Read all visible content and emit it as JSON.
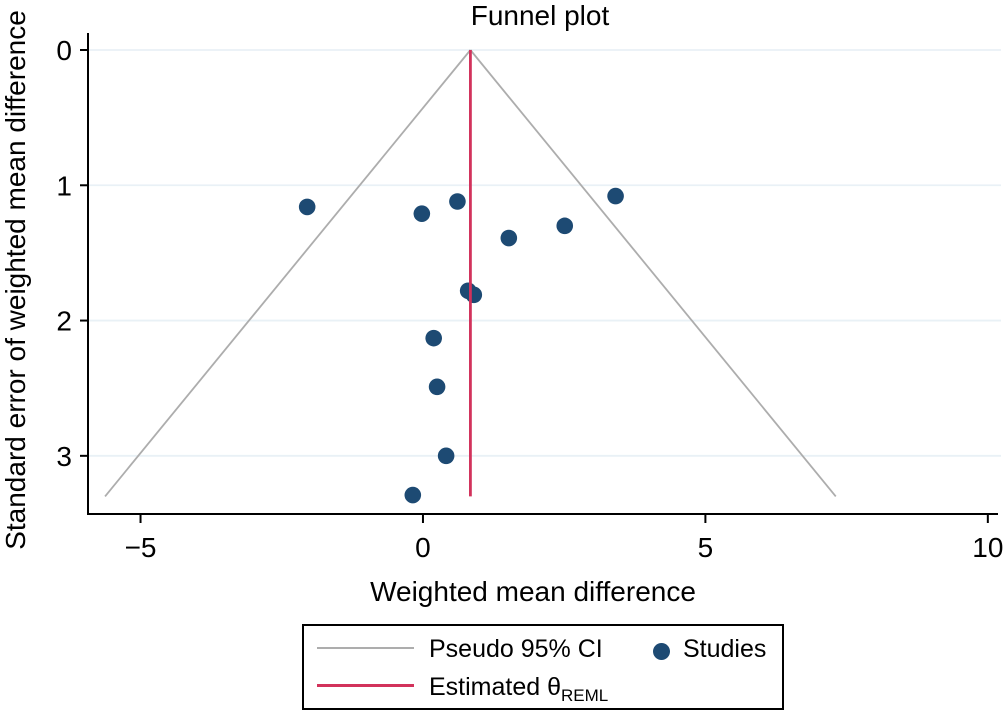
{
  "figure": {
    "title": "Funnel plot",
    "xlabel": "Weighted mean difference",
    "ylabel": "Standard error of weighted mean difference"
  },
  "legend": {
    "pseudo_ci_label": "Pseudo 95% CI",
    "estimated_label": "Estimated θ",
    "estimated_sub": "REML",
    "studies_label": "Studies"
  },
  "colors": {
    "study_dot": "#1d4a73",
    "estimate_line": "#d2325b",
    "ci_line": "#adadad",
    "gridline": "#e9f1f6",
    "axis": "#000000"
  },
  "chart_data": {
    "type": "scatter",
    "title": "Funnel plot",
    "xlabel": "Weighted mean difference",
    "ylabel": "Standard error of weighted mean difference",
    "x_axis": {
      "min": -5.93,
      "max": 10.18,
      "tick_values": [
        -5,
        0,
        5,
        10
      ],
      "tick_labels": [
        "−5",
        "0",
        "5",
        "10"
      ]
    },
    "y_axis": {
      "min": 0,
      "max": 3.43,
      "inverted": true,
      "tick_values": [
        0,
        1,
        2,
        3
      ],
      "tick_labels": [
        "0",
        "1",
        "2",
        "3"
      ]
    },
    "grid": true,
    "legend_position": "bottom",
    "estimated_theta": 0.84,
    "pseudo_ci_multiplier": 1.96,
    "max_se": 3.3,
    "series": [
      {
        "name": "Studies",
        "points": [
          {
            "wmd": -2.05,
            "se": 1.16
          },
          {
            "wmd": -0.02,
            "se": 1.21
          },
          {
            "wmd": 0.61,
            "se": 1.12
          },
          {
            "wmd": 1.52,
            "se": 1.39
          },
          {
            "wmd": 2.51,
            "se": 1.3
          },
          {
            "wmd": 3.41,
            "se": 1.08
          },
          {
            "wmd": 0.8,
            "se": 1.78
          },
          {
            "wmd": 0.9,
            "se": 1.81
          },
          {
            "wmd": 0.19,
            "se": 2.13
          },
          {
            "wmd": 0.25,
            "se": 2.49
          },
          {
            "wmd": 0.41,
            "se": 3.0
          },
          {
            "wmd": -0.18,
            "se": 3.29
          }
        ]
      }
    ]
  }
}
